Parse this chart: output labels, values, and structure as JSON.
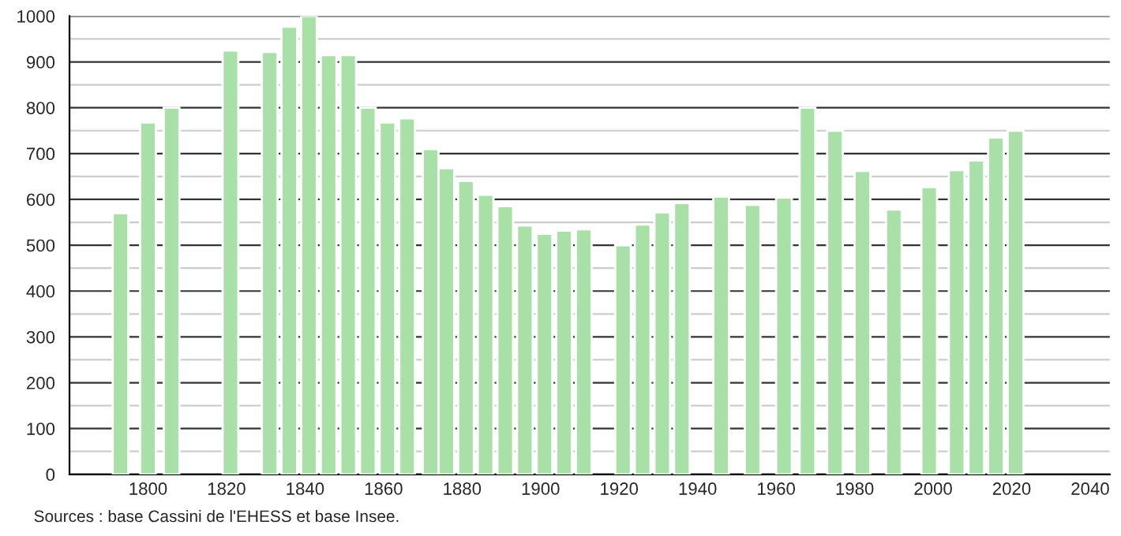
{
  "chart_data": {
    "type": "bar",
    "color": "#a8e0a8",
    "x": [
      1793,
      1800,
      1806,
      1821,
      1831,
      1836,
      1841,
      1846,
      1851,
      1856,
      1861,
      1866,
      1872,
      1876,
      1881,
      1886,
      1891,
      1896,
      1901,
      1906,
      1911,
      1921,
      1926,
      1931,
      1936,
      1946,
      1954,
      1962,
      1968,
      1975,
      1982,
      1990,
      1999,
      2006,
      2011,
      2016,
      2021
    ],
    "values": [
      570,
      768,
      800,
      925,
      922,
      977,
      1000,
      915,
      915,
      800,
      768,
      777,
      710,
      668,
      640,
      610,
      585,
      543,
      525,
      532,
      535,
      500,
      545,
      572,
      592,
      606,
      588,
      604,
      800,
      750,
      662,
      578,
      627,
      664,
      685,
      735,
      750
    ],
    "xlim": [
      1780,
      2045
    ],
    "xticks": [
      1800,
      1820,
      1840,
      1860,
      1880,
      1900,
      1920,
      1940,
      1960,
      1980,
      2000,
      2020,
      2040
    ],
    "ylim": [
      0,
      1000
    ],
    "yticks": [
      0,
      {
        "value": 50,
        "label": null
      },
      100,
      {
        "value": 150,
        "label": null
      },
      200,
      {
        "value": 250,
        "label": null
      },
      300,
      {
        "value": 350,
        "label": null
      },
      400,
      {
        "value": 450,
        "label": null
      },
      500,
      {
        "value": 550,
        "label": null
      },
      600,
      {
        "value": 650,
        "label": null
      },
      700,
      {
        "value": 750,
        "label": null
      },
      800,
      {
        "value": 850,
        "label": null
      },
      900,
      {
        "value": 950,
        "label": null
      },
      1000
    ],
    "grid": "y",
    "legend": false,
    "annotations": [
      "Sources : base Cassini de l'EHESS et base Insee."
    ]
  }
}
